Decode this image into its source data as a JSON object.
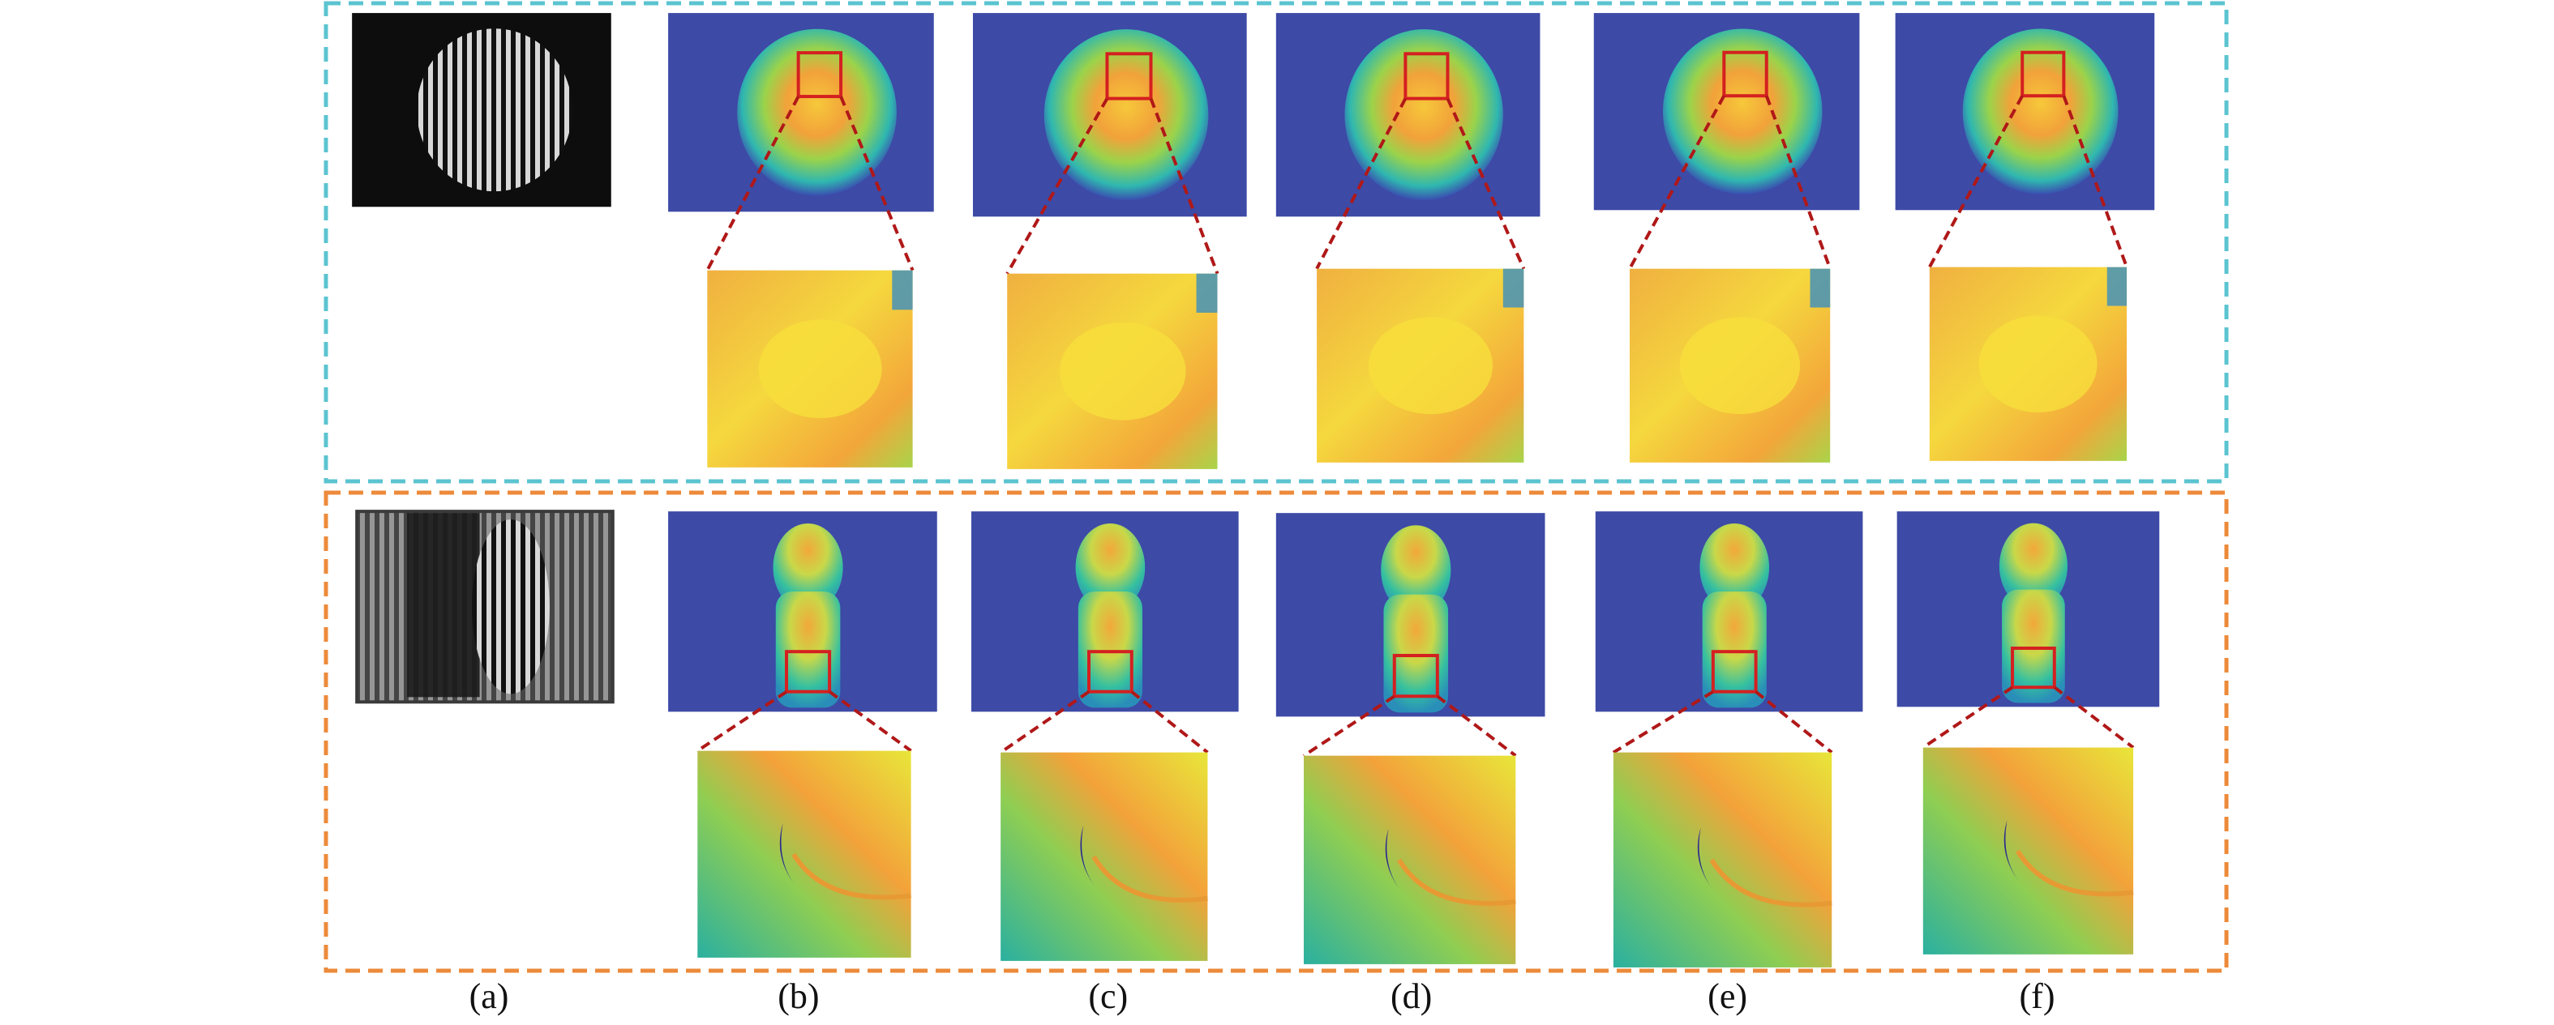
{
  "panels": {
    "labels": [
      "(a)",
      "(b)",
      "(c)",
      "(d)",
      "(e)",
      "(f)"
    ]
  }
}
